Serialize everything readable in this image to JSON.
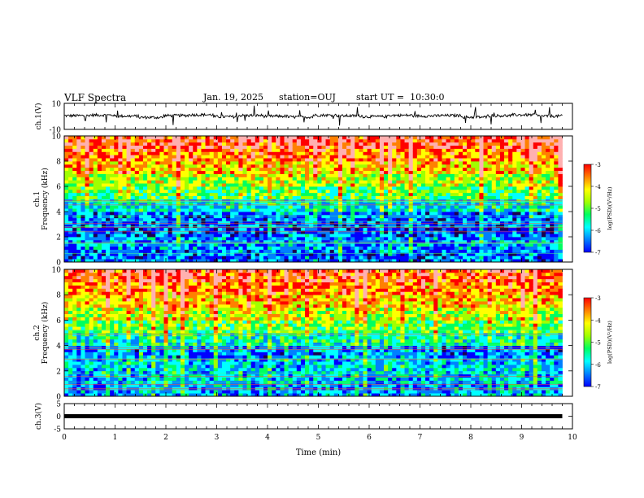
{
  "header": {
    "title": "VLF Spectra",
    "date": "Jan. 19, 2025",
    "station": "station=OUJ",
    "start_ut": "start UT =  10:30:0"
  },
  "colors": {
    "spectrogram_scale": [
      "#1a0050",
      "#0000ff",
      "#0080ff",
      "#00ffff",
      "#00ff60",
      "#a0ff00",
      "#ffff00",
      "#ff8000",
      "#ff0000",
      "#ffb0b0"
    ],
    "waveform": "#000000",
    "axes": "#000000"
  },
  "chart_data": [
    {
      "type": "line",
      "panel": "ch1-waveform",
      "ylabel": "ch.1(V)",
      "ylim": [
        -10,
        10
      ],
      "yticks": [
        "10",
        "-10"
      ],
      "xlim": [
        0,
        10
      ],
      "baseline": 0,
      "series": [
        {
          "values": [
            0.5,
            1.0,
            0.2,
            -0.8,
            0.6,
            1.2,
            -0.3,
            0.7,
            0.1,
            -0.5,
            0.9,
            0.4,
            -0.2,
            0.8,
            0.3,
            0.6,
            -0.6,
            0.5,
            1.1,
            0.2
          ]
        }
      ]
    },
    {
      "type": "heatmap",
      "panel": "ch1-spectrogram",
      "ylabel": "ch.1\nFrequency (kHz)",
      "ylim": [
        0,
        10
      ],
      "yticks": [
        "0",
        "2",
        "4",
        "6",
        "8",
        "10"
      ],
      "xlim": [
        0,
        9.8
      ],
      "colorbar": {
        "label": "log(PSD)(V²/Hz)",
        "range": [
          -7,
          -3
        ],
        "ticks": [
          "-3",
          "-4",
          "-5",
          "-6",
          "-7"
        ]
      },
      "frequency_bands_kHz": [
        0,
        1,
        2,
        3,
        4,
        5,
        6,
        7,
        8,
        9,
        10
      ],
      "mean_log_psd_by_band": [
        -6.0,
        -5.8,
        -6.1,
        -6.0,
        -5.4,
        -4.9,
        -4.5,
        -4.0,
        -3.6,
        -3.3
      ]
    },
    {
      "type": "heatmap",
      "panel": "ch2-spectrogram",
      "ylabel": "ch.2\nFrequency (kHz)",
      "ylim": [
        0,
        10
      ],
      "yticks": [
        "0",
        "2",
        "4",
        "6",
        "8",
        "10"
      ],
      "xlim": [
        0,
        9.8
      ],
      "colorbar": {
        "label": "log(PSD)(V²/Hz)",
        "range": [
          -7,
          -3
        ],
        "ticks": [
          "-3",
          "-4",
          "-5",
          "-6",
          "-7"
        ]
      },
      "frequency_bands_kHz": [
        0,
        1,
        2,
        3,
        4,
        5,
        6,
        7,
        8,
        9,
        10
      ],
      "mean_log_psd_by_band": [
        -5.8,
        -5.6,
        -5.6,
        -5.9,
        -5.3,
        -4.8,
        -4.4,
        -4.0,
        -3.7,
        -3.4
      ]
    },
    {
      "type": "line",
      "panel": "ch3-waveform",
      "ylabel": "ch.3(V)",
      "ylim": [
        -5,
        5
      ],
      "yticks": [
        "5",
        "0",
        "-5"
      ],
      "xlim": [
        0,
        10
      ],
      "series": [
        {
          "values": [
            0,
            0,
            0,
            0,
            0,
            0,
            0,
            0,
            0,
            0,
            0
          ]
        }
      ]
    }
  ],
  "x_axis": {
    "label": "Time (min)",
    "range": [
      0,
      10
    ],
    "ticks": [
      "0",
      "1",
      "2",
      "3",
      "4",
      "5",
      "6",
      "7",
      "8",
      "9",
      "10"
    ]
  }
}
